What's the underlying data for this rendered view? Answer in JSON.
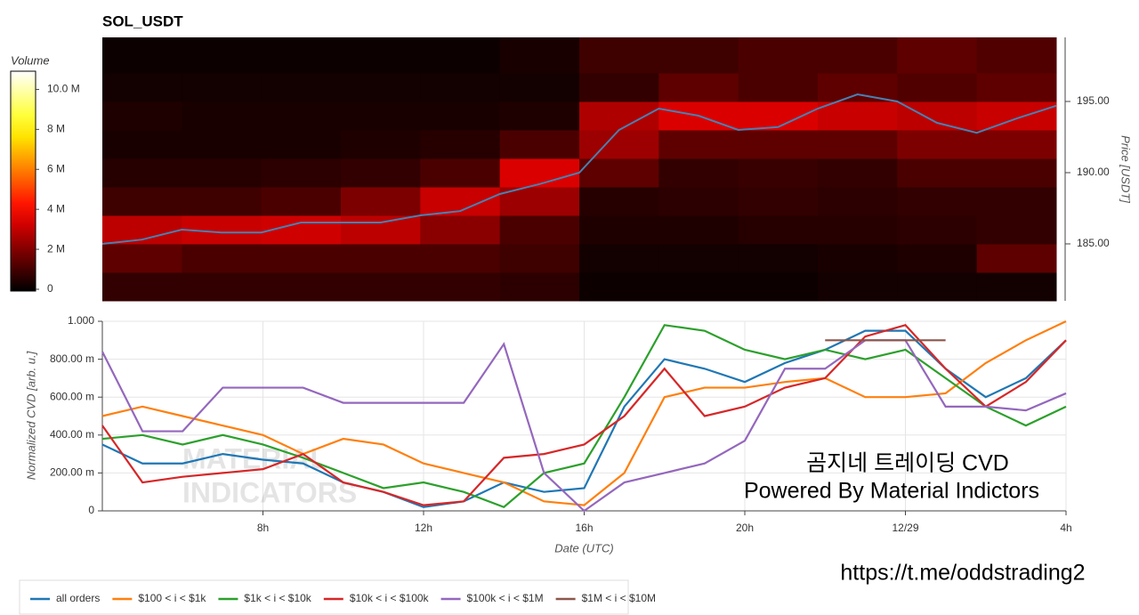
{
  "chart_data": [
    {
      "type": "heatmap",
      "title": "SOL_USDT",
      "colorbar_label": "Volume",
      "ylabel": "Price [USDT]",
      "xlim": [
        4,
        28
      ],
      "ylim": [
        181,
        199.5
      ],
      "yticks": [
        {
          "value": 185,
          "label": "185.00"
        },
        {
          "value": 190,
          "label": "190.00"
        },
        {
          "value": 195,
          "label": "195.00"
        }
      ],
      "clim": [
        0,
        11
      ],
      "cticks": [
        0,
        {
          "value": 2,
          "label": "2 M"
        },
        {
          "value": 4,
          "label": "4 M"
        },
        {
          "value": 6,
          "label": "6 M"
        },
        {
          "value": 8,
          "label": "8 M"
        },
        {
          "value": 10,
          "label": "10.0 M"
        }
      ],
      "x_bins": [
        4,
        6,
        8,
        10,
        12,
        14,
        16,
        18,
        20,
        22,
        24,
        26,
        28
      ],
      "y_bins": [
        181,
        183,
        185,
        187,
        189,
        191,
        193,
        195,
        197,
        199.5
      ],
      "values": [
        [
          0.8,
          0.8,
          0.8,
          0.8,
          0.8,
          0.7,
          0.2,
          0.2,
          0.2,
          0.3,
          0.3,
          0.3
        ],
        [
          1.5,
          1.2,
          1.2,
          1.2,
          1.2,
          1.0,
          0.3,
          0.3,
          0.3,
          0.4,
          0.5,
          1.5
        ],
        [
          3.0,
          3.2,
          3.3,
          3.0,
          2.2,
          1.2,
          0.5,
          0.5,
          0.6,
          0.6,
          0.7,
          0.8
        ],
        [
          1.0,
          1.0,
          1.2,
          2.0,
          3.2,
          2.5,
          0.6,
          0.7,
          0.8,
          0.7,
          0.8,
          0.8
        ],
        [
          0.6,
          0.6,
          0.7,
          0.8,
          1.2,
          3.5,
          1.5,
          0.8,
          0.9,
          0.8,
          1.2,
          1.2
        ],
        [
          0.4,
          0.4,
          0.4,
          0.5,
          0.6,
          1.2,
          2.5,
          1.5,
          1.5,
          1.5,
          2.0,
          2.0
        ],
        [
          0.5,
          0.4,
          0.4,
          0.4,
          0.4,
          0.5,
          2.8,
          3.5,
          3.5,
          3.2,
          3.0,
          3.2
        ],
        [
          0.3,
          0.3,
          0.3,
          0.3,
          0.3,
          0.3,
          0.8,
          1.5,
          1.2,
          1.5,
          1.3,
          1.5
        ],
        [
          0.2,
          0.2,
          0.2,
          0.2,
          0.2,
          0.4,
          1.0,
          1.0,
          1.2,
          1.2,
          1.5,
          1.3
        ]
      ],
      "line": {
        "color": "#4682b4",
        "x": [
          4,
          5,
          6,
          7,
          8,
          9,
          10,
          11,
          12,
          13,
          14,
          15,
          16,
          17,
          18,
          19,
          20,
          21,
          22,
          23,
          24,
          25,
          26,
          27,
          28
        ],
        "values": [
          185.0,
          185.3,
          186.0,
          185.8,
          185.8,
          186.5,
          186.5,
          186.5,
          187.0,
          187.3,
          188.5,
          189.2,
          190.0,
          193.0,
          194.5,
          194.0,
          193.0,
          193.2,
          194.5,
          195.5,
          195.0,
          193.5,
          192.8,
          193.8,
          194.7
        ]
      }
    },
    {
      "type": "line",
      "xlabel": "Date (UTC)",
      "ylabel": "Normalized CVD [arb. u.]",
      "grid": true,
      "legend": "bottom",
      "xlim": [
        4,
        28
      ],
      "xticks": [
        {
          "value": 8,
          "label": "8h"
        },
        {
          "value": 12,
          "label": "12h"
        },
        {
          "value": 16,
          "label": "16h"
        },
        {
          "value": 20,
          "label": "20h"
        },
        {
          "value": 24,
          "label": "12/29"
        },
        {
          "value": 28,
          "label": "4h"
        }
      ],
      "ylim": [
        0,
        1
      ],
      "yticks": [
        0,
        {
          "value": 0.2,
          "label": "200.00 m"
        },
        {
          "value": 0.4,
          "label": "400.00 m"
        },
        {
          "value": 0.6,
          "label": "600.00 m"
        },
        {
          "value": 0.8,
          "label": "800.00 m"
        },
        {
          "value": 1,
          "label": "1.000"
        }
      ],
      "x": [
        4,
        5,
        6,
        7,
        8,
        9,
        10,
        11,
        12,
        13,
        14,
        15,
        16,
        17,
        18,
        19,
        20,
        21,
        22,
        23,
        24,
        25,
        26,
        27,
        28
      ],
      "series": [
        {
          "name": "all orders",
          "color": "#1f77b4",
          "values": [
            0.35,
            0.25,
            0.25,
            0.3,
            0.27,
            0.25,
            0.15,
            0.1,
            0.02,
            0.05,
            0.15,
            0.1,
            0.12,
            0.55,
            0.8,
            0.75,
            0.68,
            0.78,
            0.85,
            0.95,
            0.95,
            0.75,
            0.6,
            0.7,
            0.9
          ]
        },
        {
          "name": "$100 < i < $1k",
          "color": "#ff7f0e",
          "values": [
            0.5,
            0.55,
            0.5,
            0.45,
            0.4,
            0.3,
            0.38,
            0.35,
            0.25,
            0.2,
            0.15,
            0.05,
            0.03,
            0.2,
            0.6,
            0.65,
            0.65,
            0.68,
            0.7,
            0.6,
            0.6,
            0.62,
            0.78,
            0.9,
            1.0
          ]
        },
        {
          "name": "$1k < i < $10k",
          "color": "#2ca02c",
          "values": [
            0.38,
            0.4,
            0.35,
            0.4,
            0.35,
            0.28,
            0.2,
            0.12,
            0.15,
            0.1,
            0.02,
            0.2,
            0.25,
            0.6,
            0.98,
            0.95,
            0.85,
            0.8,
            0.85,
            0.8,
            0.85,
            0.7,
            0.55,
            0.45,
            0.55
          ]
        },
        {
          "name": "$10k < i < $100k",
          "color": "#d62728",
          "values": [
            0.45,
            0.15,
            0.18,
            0.2,
            0.22,
            0.3,
            0.15,
            0.1,
            0.03,
            0.05,
            0.28,
            0.3,
            0.35,
            0.5,
            0.75,
            0.5,
            0.55,
            0.65,
            0.7,
            0.92,
            0.98,
            0.75,
            0.55,
            0.68,
            0.9
          ]
        },
        {
          "name": "$100k < i < $1M",
          "color": "#9467bd",
          "values": [
            0.84,
            0.42,
            0.42,
            0.65,
            0.65,
            0.65,
            0.57,
            0.57,
            0.57,
            0.57,
            0.88,
            0.2,
            0.0,
            0.15,
            0.2,
            0.25,
            0.37,
            0.75,
            0.75,
            0.9,
            0.9,
            0.55,
            0.55,
            0.53,
            0.62
          ]
        },
        {
          "name": "$1M < i < $10M",
          "color": "#8c564b",
          "values": [
            null,
            null,
            null,
            null,
            null,
            null,
            null,
            null,
            null,
            null,
            null,
            null,
            null,
            null,
            null,
            null,
            null,
            null,
            0.9,
            0.9,
            0.9,
            0.9,
            null,
            null,
            null
          ]
        }
      ],
      "watermark": [
        "MATERIAL",
        "INDICATORS"
      ],
      "annotations": [
        "곰지네 트레이딩 CVD",
        "Powered By Material Indictors",
        "https://t.me/oddstrading2"
      ]
    }
  ]
}
